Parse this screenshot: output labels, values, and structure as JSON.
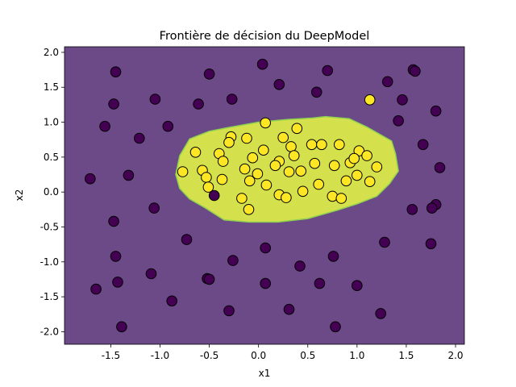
{
  "chart_data": {
    "type": "scatter",
    "title": "Frontière de décision du DeepModel",
    "xlabel": "x1",
    "ylabel": "x2",
    "xlim": [
      -1.97,
      2.09
    ],
    "ylim": [
      -2.18,
      2.08
    ],
    "x_ticks": [
      "-1.5",
      "-1.0",
      "-0.5",
      "0.0",
      "0.5",
      "1.0",
      "1.5",
      "2.0"
    ],
    "x_tick_values": [
      -1.5,
      -1.0,
      -0.5,
      0.0,
      0.5,
      1.0,
      1.5,
      2.0
    ],
    "y_ticks": [
      "-2.0",
      "-1.5",
      "-1.0",
      "-0.5",
      "0.0",
      "0.5",
      "1.0",
      "1.5",
      "2.0"
    ],
    "y_tick_values": [
      -2.0,
      -1.5,
      -1.0,
      -0.5,
      0.0,
      0.5,
      1.0,
      1.5,
      2.0
    ],
    "grid": false,
    "colors": {
      "class0_region": "#6c4a87",
      "class1_region": "#d4e14c",
      "class0_point": "#440154",
      "class1_point": "#fde725",
      "boundary": "#8fd14f"
    },
    "decision_region_class1": [
      [
        -0.8,
        0.52
      ],
      [
        -0.7,
        0.76
      ],
      [
        -0.5,
        0.87
      ],
      [
        -0.32,
        0.92
      ],
      [
        0.0,
        1.0
      ],
      [
        0.3,
        1.04
      ],
      [
        0.55,
        1.06
      ],
      [
        0.68,
        1.08
      ],
      [
        0.92,
        1.05
      ],
      [
        1.1,
        0.93
      ],
      [
        1.35,
        0.73
      ],
      [
        1.39,
        0.55
      ],
      [
        1.42,
        0.3
      ],
      [
        1.33,
        0.12
      ],
      [
        1.2,
        -0.06
      ],
      [
        1.0,
        -0.17
      ],
      [
        0.8,
        -0.26
      ],
      [
        0.5,
        -0.38
      ],
      [
        0.2,
        -0.43
      ],
      [
        -0.1,
        -0.43
      ],
      [
        -0.35,
        -0.4
      ],
      [
        -0.55,
        -0.22
      ],
      [
        -0.7,
        -0.1
      ],
      [
        -0.8,
        0.05
      ],
      [
        -0.84,
        0.25
      ]
    ],
    "series": [
      {
        "class": 0,
        "points": [
          [
            -1.45,
            1.72
          ],
          [
            -0.5,
            1.69
          ],
          [
            0.04,
            1.83
          ],
          [
            0.21,
            1.54
          ],
          [
            0.59,
            1.43
          ],
          [
            0.7,
            1.74
          ],
          [
            1.57,
            1.75
          ],
          [
            1.59,
            1.73
          ],
          [
            -1.47,
            1.26
          ],
          [
            -1.05,
            1.33
          ],
          [
            -0.61,
            1.26
          ],
          [
            -0.27,
            1.33
          ],
          [
            1.31,
            1.58
          ],
          [
            1.46,
            1.32
          ],
          [
            1.8,
            1.16
          ],
          [
            -1.56,
            0.94
          ],
          [
            -1.21,
            0.77
          ],
          [
            -0.92,
            0.94
          ],
          [
            1.42,
            1.02
          ],
          [
            1.67,
            0.68
          ],
          [
            -1.71,
            0.19
          ],
          [
            -1.32,
            0.24
          ],
          [
            1.84,
            0.35
          ],
          [
            -0.45,
            -0.05
          ],
          [
            -1.06,
            -0.23
          ],
          [
            1.56,
            -0.25
          ],
          [
            1.8,
            -0.18
          ],
          [
            1.76,
            -0.23
          ],
          [
            -1.47,
            -0.42
          ],
          [
            -0.73,
            -0.68
          ],
          [
            1.28,
            -0.72
          ],
          [
            1.75,
            -0.74
          ],
          [
            0.07,
            -0.8
          ],
          [
            -1.45,
            -0.92
          ],
          [
            -0.26,
            -0.98
          ],
          [
            0.76,
            -0.92
          ],
          [
            0.42,
            -1.06
          ],
          [
            -1.09,
            -1.17
          ],
          [
            -1.43,
            -1.29
          ],
          [
            -0.52,
            -1.24
          ],
          [
            -0.5,
            -1.25
          ],
          [
            0.07,
            -1.31
          ],
          [
            0.62,
            -1.31
          ],
          [
            1.0,
            -1.34
          ],
          [
            -1.65,
            -1.39
          ],
          [
            -0.88,
            -1.56
          ],
          [
            -0.3,
            -1.7
          ],
          [
            0.31,
            -1.68
          ],
          [
            1.24,
            -1.74
          ],
          [
            -1.39,
            -1.93
          ],
          [
            0.78,
            -1.93
          ]
        ]
      },
      {
        "class": 1,
        "points": [
          [
            1.13,
            1.32
          ],
          [
            0.07,
            0.99
          ],
          [
            0.39,
            0.91
          ],
          [
            -0.28,
            0.79
          ],
          [
            -0.12,
            0.77
          ],
          [
            0.25,
            0.78
          ],
          [
            -0.3,
            0.71
          ],
          [
            0.33,
            0.65
          ],
          [
            0.54,
            0.68
          ],
          [
            0.64,
            0.68
          ],
          [
            0.82,
            0.68
          ],
          [
            -0.64,
            0.57
          ],
          [
            -0.4,
            0.55
          ],
          [
            0.05,
            0.6
          ],
          [
            0.36,
            0.52
          ],
          [
            1.02,
            0.59
          ],
          [
            1.1,
            0.52
          ],
          [
            -0.36,
            0.44
          ],
          [
            -0.06,
            0.49
          ],
          [
            0.21,
            0.44
          ],
          [
            0.17,
            0.38
          ],
          [
            0.57,
            0.41
          ],
          [
            0.77,
            0.38
          ],
          [
            0.93,
            0.42
          ],
          [
            0.97,
            0.48
          ],
          [
            1.2,
            0.36
          ],
          [
            -0.77,
            0.29
          ],
          [
            -0.57,
            0.31
          ],
          [
            -0.14,
            0.33
          ],
          [
            0.31,
            0.29
          ],
          [
            0.43,
            0.3
          ],
          [
            1.0,
            0.24
          ],
          [
            -0.01,
            0.26
          ],
          [
            -0.53,
            0.21
          ],
          [
            -0.37,
            0.18
          ],
          [
            -0.09,
            0.16
          ],
          [
            0.89,
            0.16
          ],
          [
            1.13,
            0.15
          ],
          [
            0.61,
            0.11
          ],
          [
            -0.51,
            0.07
          ],
          [
            0.08,
            0.1
          ],
          [
            0.45,
            0.01
          ],
          [
            0.21,
            -0.04
          ],
          [
            0.28,
            -0.08
          ],
          [
            0.75,
            -0.06
          ],
          [
            -0.17,
            -0.09
          ],
          [
            0.84,
            -0.09
          ],
          [
            -0.1,
            -0.25
          ]
        ]
      }
    ]
  }
}
